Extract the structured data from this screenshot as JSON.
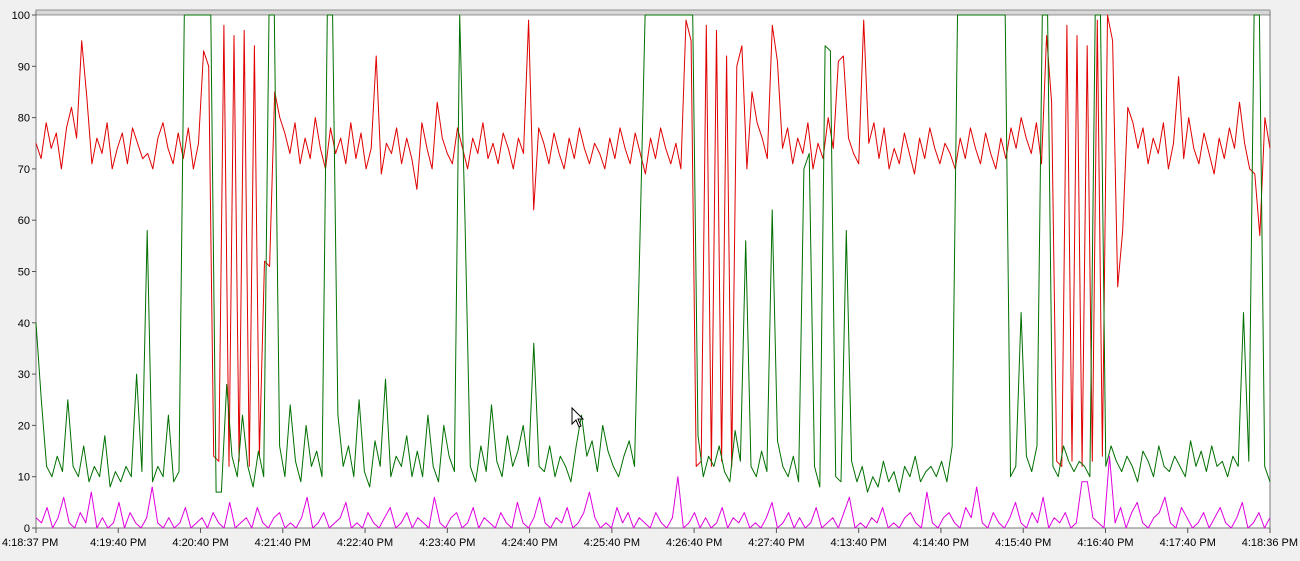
{
  "chart_data": {
    "type": "line",
    "title": "",
    "xlabel": "",
    "ylabel": "",
    "ylim": [
      0,
      100
    ],
    "y_ticks": [
      "0",
      "10",
      "20",
      "30",
      "40",
      "50",
      "60",
      "70",
      "80",
      "90",
      "100"
    ],
    "x_ticks": [
      "4:18:37 PM",
      "4:19:40 PM",
      "4:20:40 PM",
      "4:21:40 PM",
      "4:22:40 PM",
      "4:23:40 PM",
      "4:24:40 PM",
      "4:25:40 PM",
      "4:26:40 PM",
      "4:27:40 PM",
      "4:13:40 PM",
      "4:14:40 PM",
      "4:15:40 PM",
      "4:16:40 PM",
      "4:17:40 PM",
      "4:18:36 PM"
    ],
    "grid": false,
    "colors": {
      "red": "#e00000",
      "green": "#007000",
      "magenta": "#e000e0"
    },
    "series": [
      {
        "color": "#e00000",
        "values": [
          75,
          72,
          79,
          74,
          77,
          70,
          78,
          82,
          76,
          95,
          84,
          71,
          76,
          73,
          79,
          70,
          74,
          77,
          71,
          78,
          75,
          72,
          73,
          70,
          76,
          79,
          74,
          71,
          77,
          72,
          78,
          70,
          75,
          93,
          90,
          14,
          13,
          98,
          12,
          96,
          13,
          97,
          12,
          94,
          14,
          52,
          51,
          85,
          80,
          77,
          73,
          79,
          71,
          76,
          72,
          80,
          74,
          70,
          78,
          73,
          76,
          71,
          79,
          72,
          77,
          70,
          74,
          92,
          69,
          75,
          73,
          78,
          71,
          76,
          72,
          66,
          79,
          74,
          70,
          83,
          76,
          73,
          71,
          78,
          74,
          70,
          76,
          73,
          79,
          72,
          75,
          71,
          77,
          74,
          70,
          76,
          73,
          99,
          62,
          78,
          75,
          71,
          77,
          73,
          70,
          76,
          72,
          78,
          74,
          71,
          75,
          73,
          70,
          76,
          72,
          78,
          74,
          71,
          77,
          73,
          69,
          76,
          72,
          78,
          74,
          71,
          75,
          70,
          99,
          95,
          12,
          13,
          98,
          12,
          97,
          13,
          92,
          12,
          90,
          94,
          70,
          85,
          79,
          76,
          72,
          98,
          91,
          74,
          78,
          71,
          76,
          73,
          79,
          70,
          75,
          72,
          80,
          74,
          91,
          92,
          76,
          73,
          71,
          99,
          75,
          79,
          72,
          78,
          70,
          74,
          71,
          77,
          73,
          69,
          76,
          72,
          78,
          74,
          71,
          75,
          73,
          70,
          76,
          72,
          78,
          74,
          71,
          77,
          73,
          70,
          76,
          72,
          78,
          74,
          80,
          76,
          73,
          79,
          71,
          96,
          83,
          13,
          12,
          98,
          13,
          96,
          12,
          94,
          13,
          99,
          14,
          100,
          95,
          47,
          58,
          82,
          79,
          74,
          78,
          71,
          76,
          73,
          79,
          70,
          75,
          88,
          72,
          80,
          74,
          71,
          77,
          73,
          69,
          76,
          72,
          78,
          74,
          83,
          75,
          70,
          69,
          57,
          80,
          74
        ]
      },
      {
        "color": "#007000",
        "values": [
          40,
          25,
          12,
          10,
          14,
          11,
          25,
          12,
          10,
          16,
          9,
          12,
          10,
          18,
          8,
          11,
          9,
          12,
          10,
          30,
          11,
          58,
          9,
          12,
          10,
          22,
          9,
          11,
          100,
          100,
          100,
          100,
          100,
          100,
          7,
          7,
          28,
          14,
          10,
          22,
          12,
          8,
          15,
          10,
          100,
          100,
          16,
          10,
          24,
          13,
          9,
          20,
          12,
          15,
          10,
          100,
          100,
          22,
          12,
          16,
          10,
          25,
          11,
          8,
          17,
          12,
          29,
          10,
          14,
          12,
          18,
          10,
          15,
          10,
          22,
          12,
          9,
          20,
          14,
          11,
          100,
          60,
          12,
          9,
          16,
          11,
          24,
          13,
          10,
          18,
          12,
          15,
          20,
          12,
          36,
          12,
          11,
          16,
          10,
          14,
          12,
          9,
          16,
          22,
          14,
          17,
          11,
          20,
          15,
          12,
          10,
          14,
          17,
          12,
          55,
          100,
          100,
          100,
          100,
          100,
          100,
          100,
          100,
          100,
          100,
          18,
          10,
          14,
          12,
          16,
          11,
          9,
          19,
          13,
          56,
          12,
          10,
          15,
          11,
          62,
          17,
          12,
          10,
          14,
          9,
          70,
          73,
          12,
          8,
          94,
          93,
          10,
          9,
          58,
          13,
          9,
          12,
          7,
          10,
          8,
          13,
          9,
          11,
          7,
          12,
          10,
          14,
          9,
          11,
          12,
          10,
          13,
          9,
          16,
          100,
          100,
          100,
          100,
          100,
          100,
          100,
          100,
          100,
          100,
          10,
          12,
          42,
          14,
          11,
          16,
          100,
          100,
          12,
          10,
          16,
          13,
          11,
          13,
          12,
          10,
          100,
          100,
          12,
          16,
          13,
          11,
          14,
          12,
          9,
          15,
          13,
          10,
          16,
          12,
          11,
          14,
          12,
          10,
          17,
          12,
          15,
          11,
          16,
          12,
          13,
          10,
          14,
          12,
          42,
          13,
          100,
          100,
          12,
          9
        ]
      },
      {
        "color": "#e000e0",
        "values": [
          2,
          1,
          4,
          0,
          2,
          6,
          1,
          0,
          3,
          1,
          7,
          0,
          2,
          0,
          1,
          5,
          0,
          3,
          1,
          0,
          2,
          8,
          1,
          0,
          2,
          0,
          1,
          4,
          0,
          1,
          2,
          0,
          3,
          1,
          0,
          5,
          0,
          1,
          2,
          0,
          4,
          1,
          0,
          2,
          3,
          0,
          1,
          0,
          2,
          6,
          0,
          1,
          3,
          0,
          1,
          2,
          5,
          0,
          1,
          0,
          3,
          1,
          0,
          2,
          4,
          0,
          1,
          3,
          0,
          2,
          1,
          0,
          6,
          1,
          0,
          2,
          3,
          0,
          1,
          4,
          0,
          2,
          1,
          0,
          3,
          1,
          0,
          5,
          1,
          0,
          2,
          6,
          1,
          0,
          2,
          1,
          4,
          0,
          1,
          3,
          7,
          2,
          0,
          1,
          0,
          4,
          1,
          3,
          0,
          2,
          1,
          0,
          3,
          1,
          0,
          2,
          10,
          0,
          1,
          3,
          0,
          2,
          0,
          1,
          4,
          0,
          2,
          1,
          3,
          0,
          1,
          0,
          2,
          5,
          0,
          1,
          3,
          0,
          2,
          0,
          1,
          4,
          0,
          1,
          2,
          0,
          3,
          6,
          0,
          1,
          0,
          2,
          1,
          4,
          0,
          1,
          0,
          2,
          3,
          1,
          0,
          7,
          1,
          0,
          2,
          3,
          1,
          0,
          4,
          2,
          8,
          1,
          0,
          3,
          1,
          0,
          2,
          5,
          1,
          0,
          3,
          1,
          6,
          0,
          2,
          1,
          3,
          0,
          1,
          9,
          9,
          2,
          1,
          0,
          14,
          1,
          4,
          0,
          3,
          5,
          1,
          0,
          2,
          3,
          6,
          1,
          0,
          4,
          2,
          0,
          1,
          3,
          0,
          2,
          4,
          1,
          0,
          2,
          5,
          0,
          1,
          3,
          0,
          2
        ]
      }
    ]
  }
}
